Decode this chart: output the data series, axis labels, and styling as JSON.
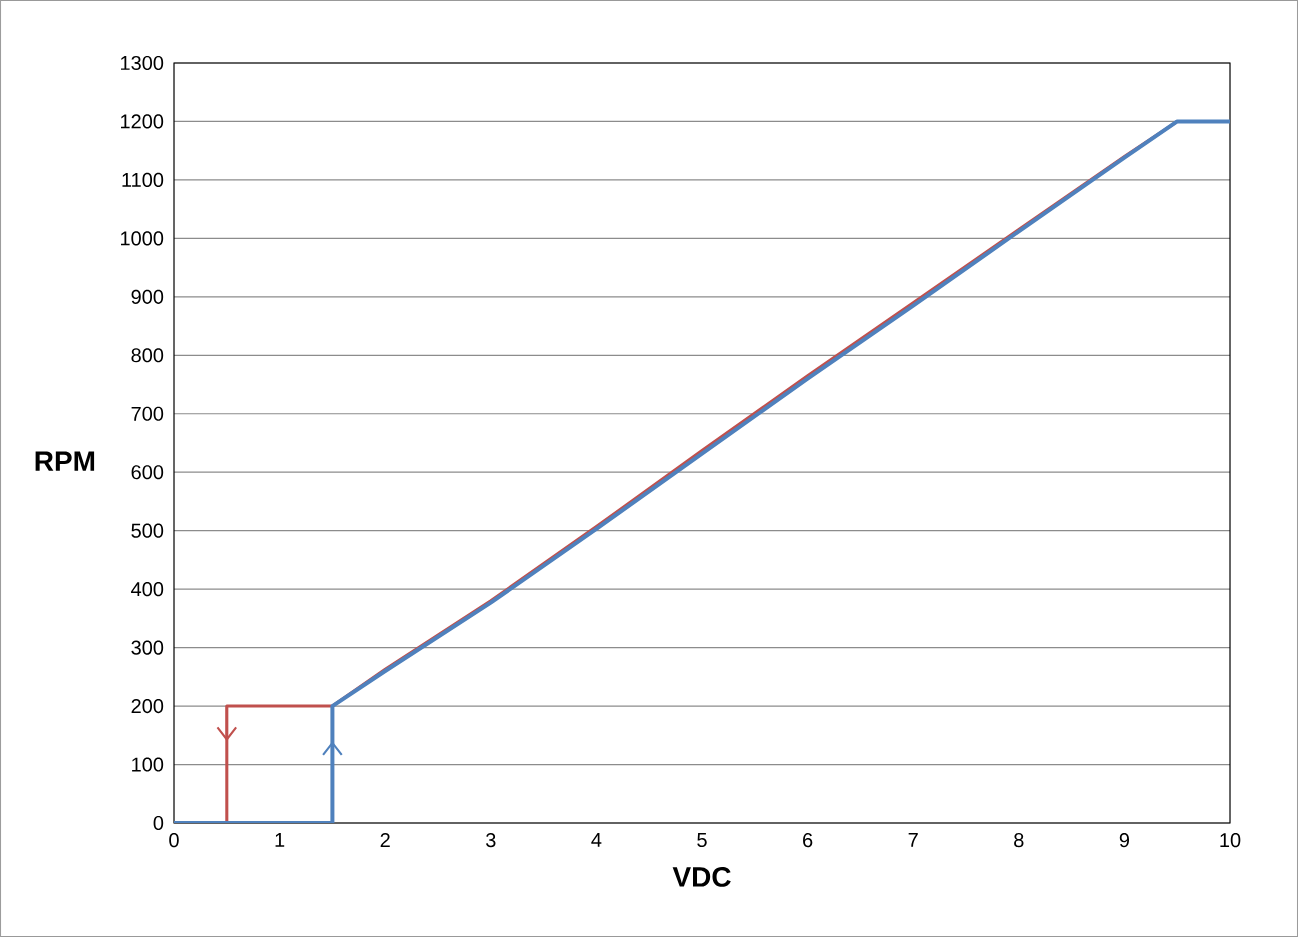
{
  "chart_data": {
    "type": "line",
    "xlabel": "VDC",
    "ylabel": "RPM",
    "xlim": [
      0,
      10
    ],
    "xticks": [
      0,
      1,
      2,
      3,
      4,
      5,
      6,
      7,
      8,
      9,
      10
    ],
    "ylim": [
      0,
      1300
    ],
    "yticks": [
      0,
      100,
      200,
      300,
      400,
      500,
      600,
      700,
      800,
      900,
      1000,
      1100,
      1200,
      1300
    ],
    "grid": "y",
    "marker": "none",
    "line_style": "solid",
    "series": [
      {
        "color": "#c0504d",
        "x": [
          10,
          9.5,
          9,
          8,
          7,
          6,
          5,
          4,
          3,
          2,
          1.5,
          0.5,
          0.5,
          0
        ],
        "values": [
          1200,
          1200,
          1140,
          1015,
          890,
          765,
          637,
          507,
          380,
          263,
          200,
          200,
          0,
          0
        ]
      },
      {
        "color": "#4f81bd",
        "x": [
          0,
          1.5,
          1.5,
          2,
          3,
          4,
          5,
          6,
          7,
          8,
          9,
          9.5,
          10
        ],
        "values": [
          0,
          0,
          200,
          260,
          377,
          503,
          632,
          760,
          885,
          1012,
          1138,
          1200,
          1200
        ]
      }
    ]
  }
}
